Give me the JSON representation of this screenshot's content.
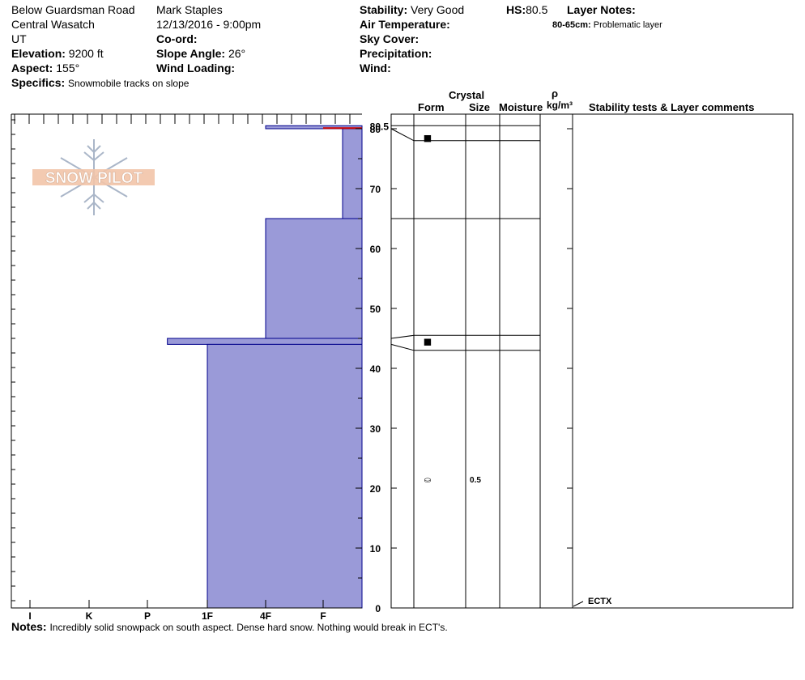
{
  "header": {
    "location": "Below Guardsman Road",
    "range": "Central Wasatch",
    "state": "UT",
    "elevation_label": "Elevation:",
    "elevation": "9200 ft",
    "aspect_label": "Aspect:",
    "aspect": "155°",
    "specifics_label": "Specifics:",
    "specifics": "Snowmobile tracks on slope",
    "observer": "Mark Staples",
    "datetime": "12/13/2016 - 9:00pm",
    "coord_label": "Co-ord:",
    "slope_label": "Slope Angle:",
    "slope": "26°",
    "wind_loading_label": "Wind Loading:",
    "stability_label": "Stability:",
    "stability": "Very Good",
    "air_temp_label": "Air Temperature:",
    "sky_label": "Sky Cover:",
    "precip_label": "Precipitation:",
    "wind_label": "Wind:",
    "hs_label": "HS:",
    "hs": "80.5",
    "layer_notes_label": "Layer Notes:",
    "layer_note_range": "80-65cm:",
    "layer_note_text": "Problematic layer"
  },
  "logo": {
    "text": "SNOW PILOT"
  },
  "table_headers": {
    "crystal": "Crystal",
    "form": "Form",
    "size": "Size",
    "moisture": "Moisture",
    "rho": "ρ",
    "density_unit": "kg/m³",
    "stability": "Stability tests & Layer comments"
  },
  "notes": {
    "label": "Notes:",
    "text": "Incredibly solid snowpack on south aspect. Dense hard snow. Nothing would break in ECT's."
  },
  "test_result": {
    "label": "ECTX",
    "depth": 0
  },
  "colors": {
    "layer_fill": "#9a9ad8",
    "layer_stroke": "#00008b",
    "surface_line": "#cc0000"
  },
  "chart_data": {
    "type": "hardness-profile",
    "x_categories": [
      "I",
      "K",
      "P",
      "1F",
      "4F",
      "F"
    ],
    "hardness_scale_note": "I=hard (left) ... F=soft (right)",
    "y_axis_ticks": [
      0,
      10,
      20,
      30,
      40,
      50,
      60,
      70,
      80
    ],
    "y_top_label": "80.5",
    "ylim": [
      0,
      80.5
    ],
    "layers": [
      {
        "top": 80.5,
        "bottom": 80.0,
        "hardness": "4F"
      },
      {
        "top": 80.0,
        "bottom": 65.0,
        "hardness": "F-"
      },
      {
        "top": 65.0,
        "bottom": 45.0,
        "hardness": "4F"
      },
      {
        "top": 45.0,
        "bottom": 44.0,
        "hardness": "P-"
      },
      {
        "top": 44.0,
        "bottom": 0.0,
        "hardness": "1F"
      }
    ],
    "layer_boundaries_right": [
      80.5,
      78,
      65,
      45.5,
      43
    ],
    "crystals": [
      {
        "depth": 78.5,
        "form_symbol": "■",
        "size": ""
      },
      {
        "depth": 44.5,
        "form_symbol": "■",
        "size": ""
      },
      {
        "depth": 21.5,
        "form_symbol": "⛀",
        "size": "0.5"
      }
    ]
  }
}
